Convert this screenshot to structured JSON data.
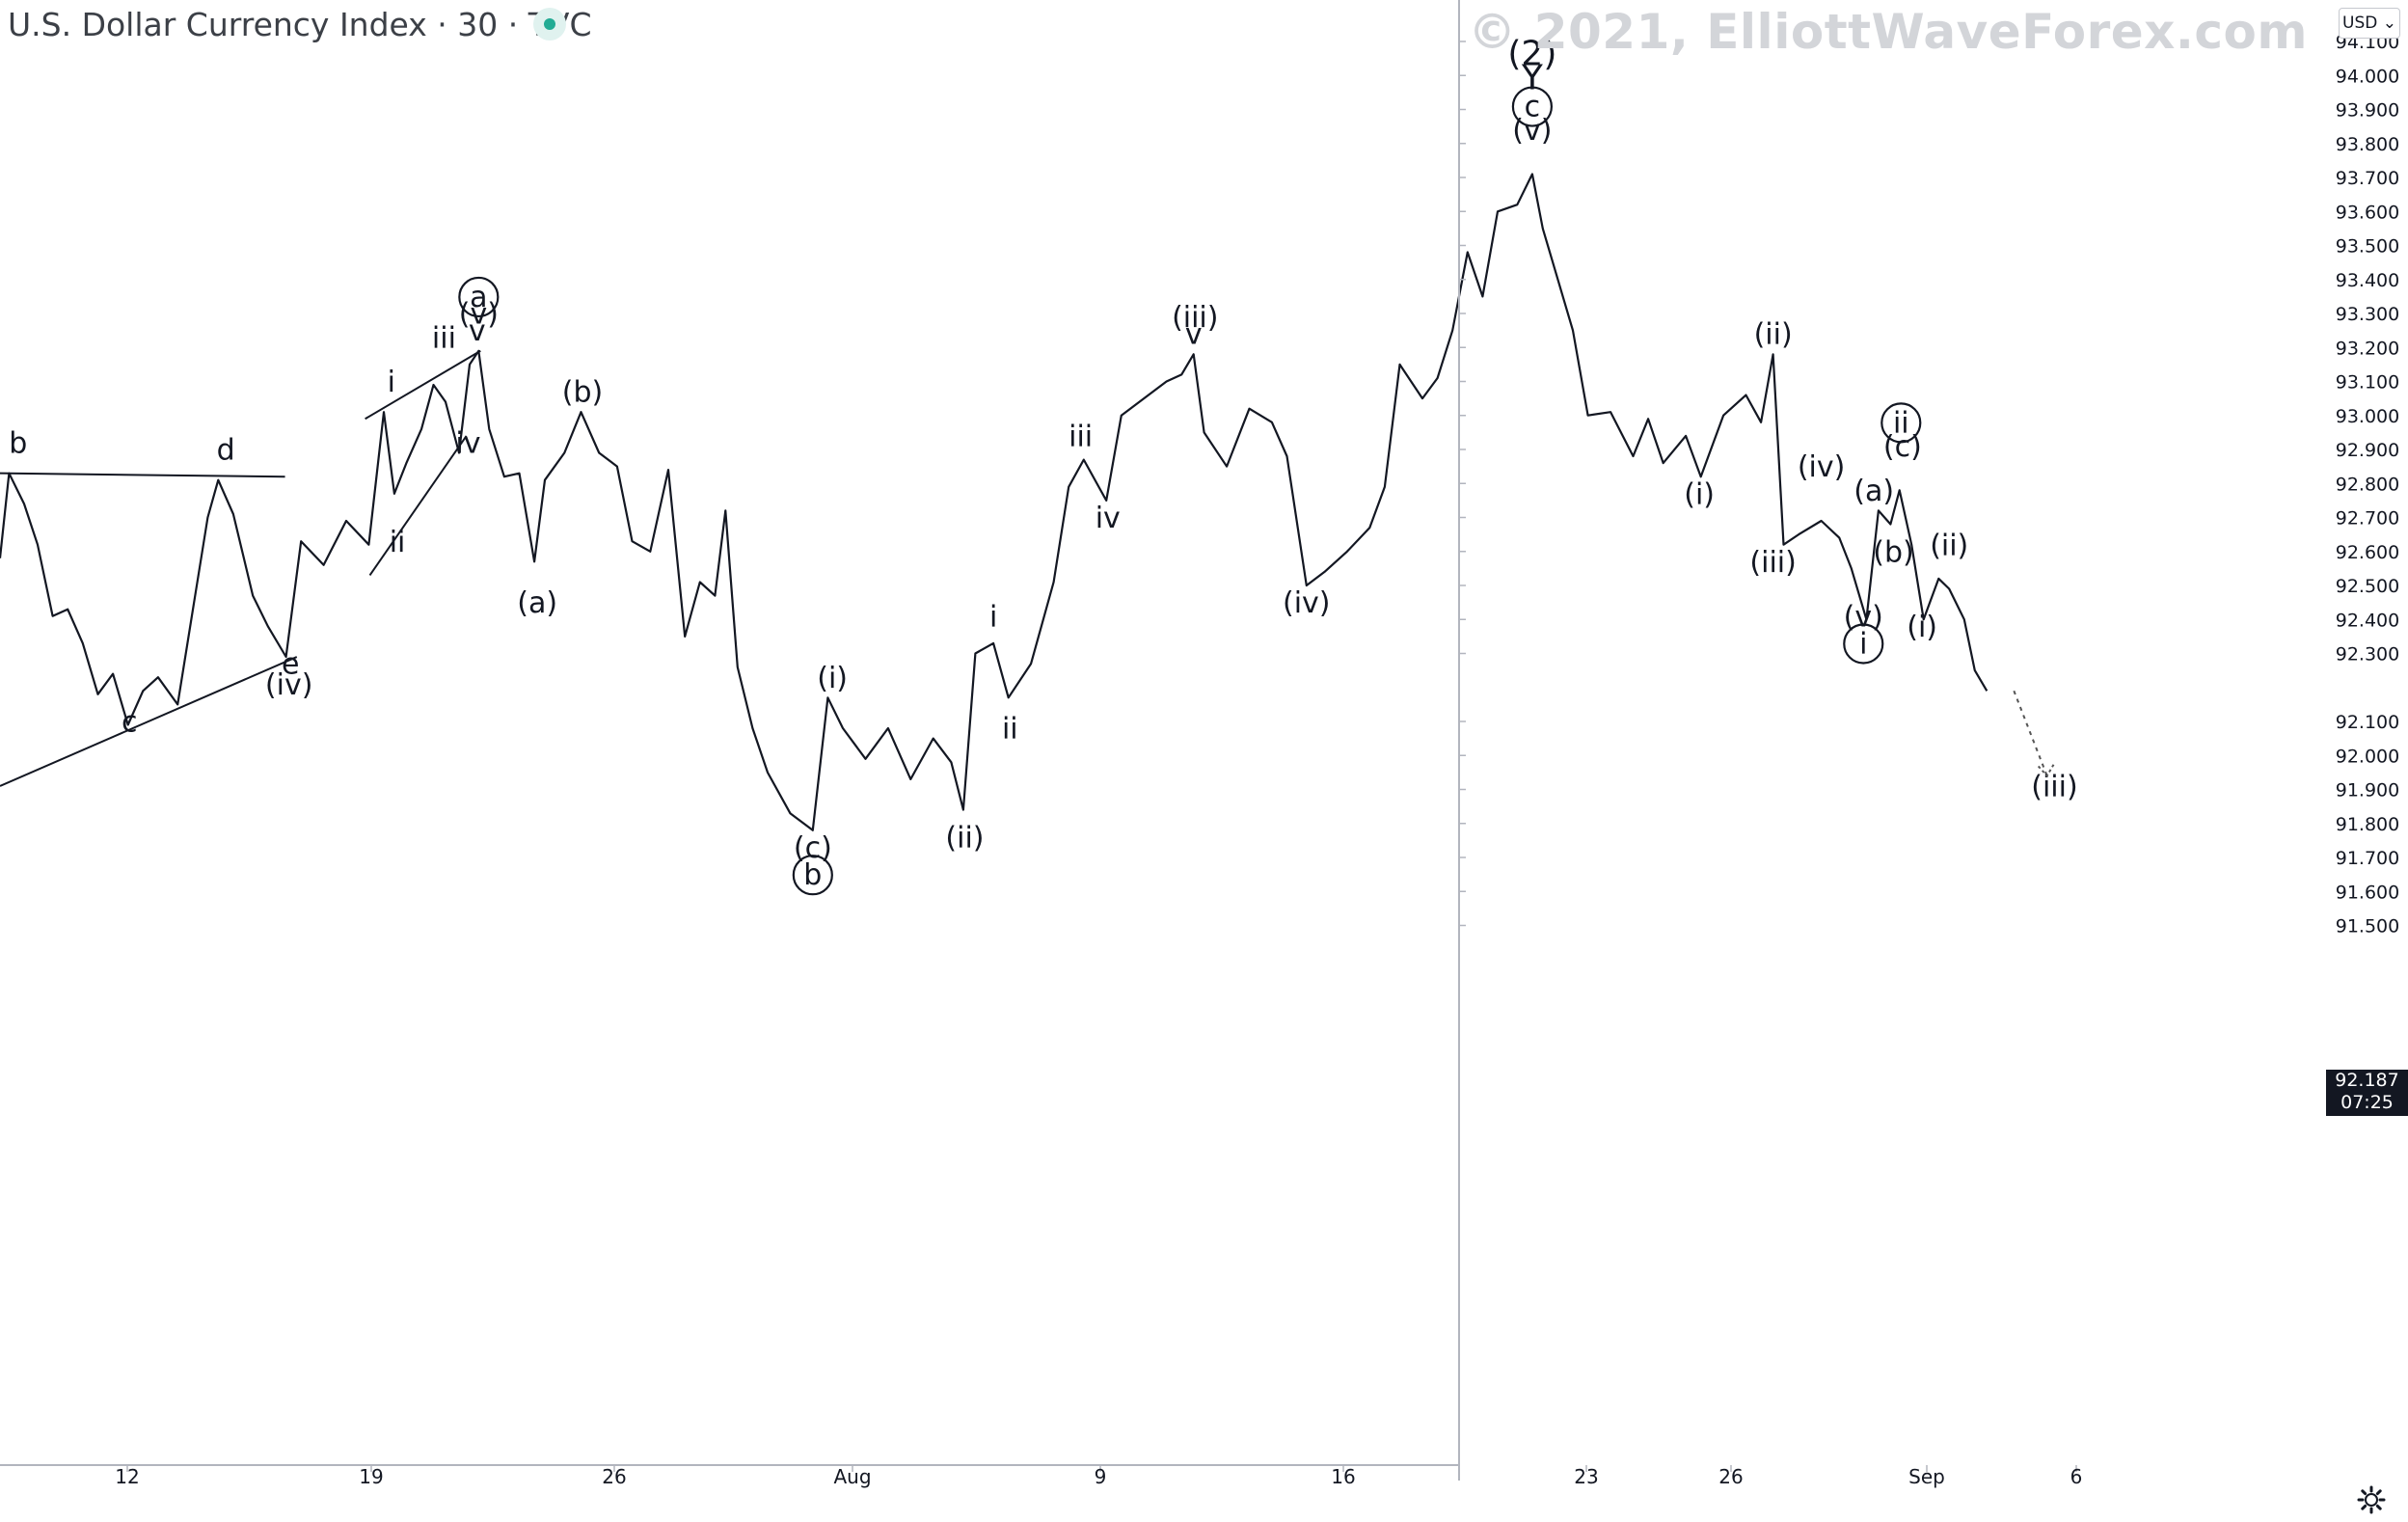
{
  "header": {
    "title": "U.S. Dollar Currency Index · 30 · TVC",
    "watermark": "© 2021, ElliottWaveForex.com",
    "currency_button": "USD ⌄"
  },
  "last_price": {
    "value": "92.187",
    "countdown": "07:25"
  },
  "icons": [
    "status-dot-icon",
    "settings-icon"
  ],
  "colors": {
    "candle": "#131722",
    "background": "#ffffff",
    "axis": "#b2b5be",
    "live_dot": "#22ab94"
  },
  "chart_data": {
    "type": "line",
    "title": "U.S. Dollar Currency Index · 30 · TVC",
    "x_ticks": [
      "12",
      "19",
      "26",
      "Aug",
      "9",
      "16",
      "23",
      "26",
      "Sep",
      "6"
    ],
    "y_ticks": [
      "94.100",
      "94.000",
      "93.900",
      "93.800",
      "93.700",
      "93.600",
      "93.500",
      "93.400",
      "93.300",
      "93.200",
      "93.100",
      "93.000",
      "92.900",
      "92.800",
      "92.700",
      "92.600",
      "92.500",
      "92.400",
      "92.300",
      "92.100",
      "92.000",
      "91.900",
      "91.800",
      "91.700",
      "91.600",
      "91.500"
    ],
    "ylim": [
      91.45,
      94.14
    ],
    "grid": false,
    "series": [
      {
        "values": [
          [
            0,
            92.58
          ],
          [
            6,
            92.83
          ],
          [
            16,
            92.74
          ],
          [
            25,
            92.62
          ],
          [
            35,
            92.41
          ],
          [
            45,
            92.43
          ],
          [
            55,
            92.33
          ],
          [
            65,
            92.18
          ],
          [
            75,
            92.24
          ],
          [
            85,
            92.09
          ],
          [
            95,
            92.19
          ],
          [
            105,
            92.23
          ],
          [
            118,
            92.15
          ],
          [
            130,
            92.48
          ],
          [
            138,
            92.7
          ],
          [
            145,
            92.81
          ],
          [
            155,
            92.71
          ],
          [
            168,
            92.47
          ],
          [
            178,
            92.38
          ],
          [
            190,
            92.29
          ],
          [
            200,
            92.63
          ],
          [
            215,
            92.56
          ],
          [
            230,
            92.69
          ],
          [
            245,
            92.62
          ],
          [
            255,
            93.01
          ],
          [
            262,
            92.77
          ],
          [
            270,
            92.86
          ],
          [
            280,
            92.96
          ],
          [
            288,
            93.09
          ],
          [
            296,
            93.04
          ],
          [
            305,
            92.89
          ],
          [
            312,
            93.15
          ],
          [
            318,
            93.19
          ],
          [
            325,
            92.96
          ],
          [
            335,
            92.82
          ],
          [
            345,
            92.83
          ],
          [
            355,
            92.57
          ],
          [
            362,
            92.81
          ],
          [
            375,
            92.89
          ],
          [
            386,
            93.01
          ],
          [
            398,
            92.89
          ],
          [
            410,
            92.85
          ],
          [
            420,
            92.63
          ],
          [
            432,
            92.6
          ],
          [
            444,
            92.84
          ],
          [
            455,
            92.35
          ],
          [
            465,
            92.51
          ],
          [
            475,
            92.47
          ],
          [
            482,
            92.72
          ],
          [
            490,
            92.26
          ],
          [
            500,
            92.08
          ],
          [
            510,
            91.95
          ],
          [
            525,
            91.83
          ],
          [
            540,
            91.78
          ],
          [
            550,
            92.17
          ],
          [
            560,
            92.08
          ],
          [
            575,
            91.99
          ],
          [
            590,
            92.08
          ],
          [
            605,
            91.93
          ],
          [
            620,
            92.05
          ],
          [
            632,
            91.98
          ],
          [
            640,
            91.84
          ],
          [
            648,
            92.3
          ],
          [
            660,
            92.33
          ],
          [
            670,
            92.17
          ],
          [
            685,
            92.27
          ],
          [
            700,
            92.51
          ],
          [
            710,
            92.79
          ],
          [
            720,
            92.87
          ],
          [
            735,
            92.75
          ],
          [
            745,
            93.0
          ],
          [
            760,
            93.05
          ],
          [
            775,
            93.1
          ],
          [
            785,
            93.12
          ],
          [
            793,
            93.18
          ],
          [
            800,
            92.95
          ],
          [
            815,
            92.85
          ],
          [
            830,
            93.02
          ],
          [
            845,
            92.98
          ],
          [
            855,
            92.88
          ],
          [
            868,
            92.5
          ],
          [
            880,
            92.54
          ],
          [
            895,
            92.6
          ],
          [
            910,
            92.67
          ],
          [
            920,
            92.79
          ],
          [
            930,
            93.15
          ],
          [
            945,
            93.05
          ],
          [
            955,
            93.11
          ],
          [
            965,
            93.25
          ],
          [
            975,
            93.48
          ],
          [
            985,
            93.35
          ],
          [
            995,
            93.6
          ],
          [
            1008,
            93.62
          ],
          [
            1018,
            93.71
          ],
          [
            1025,
            93.55
          ],
          [
            1035,
            93.4
          ],
          [
            1045,
            93.25
          ],
          [
            1055,
            93.0
          ],
          [
            1070,
            93.01
          ],
          [
            1085,
            92.88
          ],
          [
            1095,
            92.99
          ],
          [
            1105,
            92.86
          ],
          [
            1120,
            92.94
          ],
          [
            1130,
            92.82
          ],
          [
            1145,
            93.0
          ],
          [
            1160,
            93.06
          ],
          [
            1170,
            92.98
          ],
          [
            1178,
            93.18
          ],
          [
            1185,
            92.62
          ],
          [
            1195,
            92.65
          ],
          [
            1210,
            92.69
          ],
          [
            1222,
            92.64
          ],
          [
            1230,
            92.55
          ],
          [
            1240,
            92.4
          ],
          [
            1248,
            92.72
          ],
          [
            1256,
            92.68
          ],
          [
            1262,
            92.78
          ],
          [
            1270,
            92.62
          ],
          [
            1278,
            92.4
          ],
          [
            1288,
            92.52
          ],
          [
            1295,
            92.49
          ],
          [
            1305,
            92.4
          ],
          [
            1312,
            92.25
          ],
          [
            1320,
            92.19
          ]
        ]
      }
    ],
    "projection": {
      "from": [
        1338,
        92.19
      ],
      "to": [
        1360,
        91.94
      ]
    },
    "wave_labels": [
      {
        "text": "b",
        "x": 12,
        "y": 92.89,
        "circled": false
      },
      {
        "text": "d",
        "x": 150,
        "y": 92.87,
        "circled": false
      },
      {
        "text": "c",
        "x": 86,
        "y": 92.07,
        "circled": false
      },
      {
        "text": "e",
        "x": 193,
        "y": 92.24,
        "circled": false
      },
      {
        "text": "(iv)",
        "x": 192,
        "y": 92.18,
        "circled": false
      },
      {
        "text": "i",
        "x": 260,
        "y": 93.07,
        "circled": false
      },
      {
        "text": "ii",
        "x": 264,
        "y": 92.6,
        "circled": false
      },
      {
        "text": "iii",
        "x": 295,
        "y": 93.2,
        "circled": false
      },
      {
        "text": "iv",
        "x": 311,
        "y": 92.89,
        "circled": false
      },
      {
        "text": "v",
        "x": 317,
        "y": 93.22,
        "circled": false
      },
      {
        "text": "(v)",
        "x": 318,
        "y": 93.27,
        "circled": false
      },
      {
        "text": "a",
        "x": 318,
        "y": 93.32,
        "circled": true
      },
      {
        "text": "(a)",
        "x": 357,
        "y": 92.42,
        "circled": false
      },
      {
        "text": "(b)",
        "x": 387,
        "y": 93.04,
        "circled": false
      },
      {
        "text": "(c)",
        "x": 540,
        "y": 91.7,
        "circled": false
      },
      {
        "text": "b",
        "x": 540,
        "y": 91.62,
        "circled": true
      },
      {
        "text": "(i)",
        "x": 553,
        "y": 92.2,
        "circled": false
      },
      {
        "text": "(ii)",
        "x": 641,
        "y": 91.73,
        "circled": false
      },
      {
        "text": "i",
        "x": 660,
        "y": 92.38,
        "circled": false
      },
      {
        "text": "ii",
        "x": 671,
        "y": 92.05,
        "circled": false
      },
      {
        "text": "iii",
        "x": 718,
        "y": 92.91,
        "circled": false
      },
      {
        "text": "iv",
        "x": 736,
        "y": 92.67,
        "circled": false
      },
      {
        "text": "(iii)",
        "x": 794,
        "y": 93.26,
        "circled": false
      },
      {
        "text": "v",
        "x": 793,
        "y": 93.21,
        "circled": false
      },
      {
        "text": "(iv)",
        "x": 868,
        "y": 92.42,
        "circled": false
      },
      {
        "text": "(2)",
        "x": 1018,
        "y": 94.03,
        "circled": false
      },
      {
        "text": "Y",
        "x": 1018,
        "y": 93.96,
        "circled": false
      },
      {
        "text": "c",
        "x": 1018,
        "y": 93.88,
        "circled": true
      },
      {
        "text": "(v)",
        "x": 1018,
        "y": 93.81,
        "circled": false
      },
      {
        "text": "(i)",
        "x": 1129,
        "y": 92.74,
        "circled": false
      },
      {
        "text": "(ii)",
        "x": 1178,
        "y": 93.21,
        "circled": false
      },
      {
        "text": "(iii)",
        "x": 1178,
        "y": 92.54,
        "circled": false
      },
      {
        "text": "(iv)",
        "x": 1210,
        "y": 92.82,
        "circled": false
      },
      {
        "text": "(a)",
        "x": 1245,
        "y": 92.75,
        "circled": false
      },
      {
        "text": "ii",
        "x": 1263,
        "y": 92.95,
        "circled": true
      },
      {
        "text": "(c)",
        "x": 1264,
        "y": 92.88,
        "circled": false
      },
      {
        "text": "(b)",
        "x": 1258,
        "y": 92.57,
        "circled": false
      },
      {
        "text": "(v)",
        "x": 1238,
        "y": 92.38,
        "circled": false
      },
      {
        "text": "i",
        "x": 1238,
        "y": 92.3,
        "circled": true
      },
      {
        "text": "(ii)",
        "x": 1295,
        "y": 92.59,
        "circled": false
      },
      {
        "text": "(i)",
        "x": 1277,
        "y": 92.35,
        "circled": false
      },
      {
        "text": "(iii)",
        "x": 1365,
        "y": 91.88,
        "circled": false
      }
    ]
  }
}
